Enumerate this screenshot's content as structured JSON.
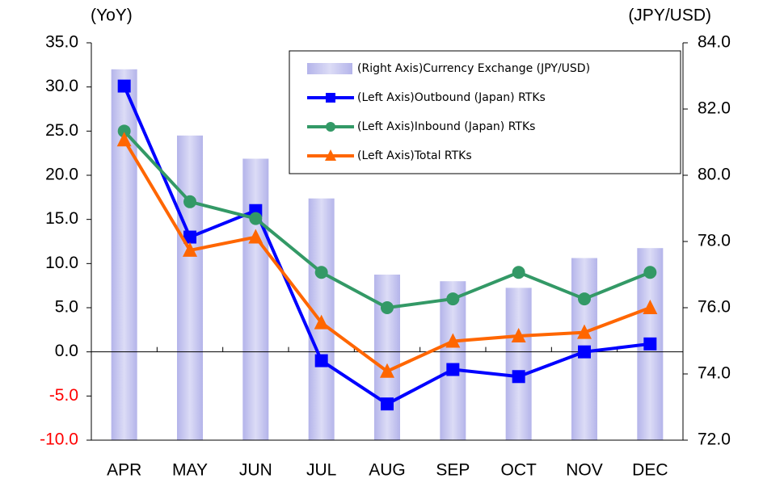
{
  "chart_data": {
    "type": "combo",
    "y_label": "(YoY)",
    "y2_label": "(JPY/USD)",
    "categories": [
      "APR",
      "MAY",
      "JUN",
      "JUL",
      "AUG",
      "SEP",
      "OCT",
      "NOV",
      "DEC"
    ],
    "series": [
      {
        "name": "(Right Axis)Currency Exchange (JPY/USD)",
        "type": "bar",
        "axis": "y2",
        "color": "#b4b4ea",
        "values": [
          83.2,
          81.2,
          80.5,
          79.3,
          77.0,
          76.8,
          76.6,
          77.5,
          77.8
        ]
      },
      {
        "name": "(Left Axis)Outbound (Japan) RTKs",
        "type": "line",
        "marker": "square",
        "color": "#0000ff",
        "values": [
          30.1,
          13.0,
          16.0,
          -1.0,
          -5.9,
          -2.0,
          -2.8,
          0.0,
          0.9
        ]
      },
      {
        "name": "(Left Axis)Inbound (Japan) RTKs",
        "type": "line",
        "marker": "circle",
        "color": "#339966",
        "values": [
          25.0,
          17.0,
          15.1,
          9.0,
          5.0,
          6.0,
          9.0,
          6.0,
          9.0
        ]
      },
      {
        "name": "(Left Axis)Total RTKs",
        "type": "line",
        "marker": "triangle",
        "color": "#ff6600",
        "values": [
          24.0,
          11.5,
          13.0,
          3.3,
          -2.2,
          1.2,
          1.8,
          2.2,
          5.0
        ]
      }
    ],
    "ylim": [
      -10,
      35
    ],
    "yticks": [
      {
        "value": -10,
        "label": "-10.0"
      },
      {
        "value": -5,
        "label": "-5.0"
      },
      {
        "value": 0,
        "label": "0.0"
      },
      {
        "value": 5,
        "label": "5.0"
      },
      {
        "value": 10,
        "label": "10.0"
      },
      {
        "value": 15,
        "label": "15.0"
      },
      {
        "value": 20,
        "label": "20.0"
      },
      {
        "value": 25,
        "label": "25.0"
      },
      {
        "value": 30,
        "label": "30.0"
      },
      {
        "value": 35,
        "label": "35.0"
      }
    ],
    "y2lim": [
      72,
      84
    ],
    "y2ticks": [
      {
        "value": 72,
        "label": "72.0"
      },
      {
        "value": 74,
        "label": "74.0"
      },
      {
        "value": 76,
        "label": "76.0"
      },
      {
        "value": 78,
        "label": "78.0"
      },
      {
        "value": 80,
        "label": "80.0"
      },
      {
        "value": 82,
        "label": "82.0"
      },
      {
        "value": 84,
        "label": "84.0"
      }
    ],
    "negative_tick_color": "#ff0000",
    "legend": "top-right"
  }
}
